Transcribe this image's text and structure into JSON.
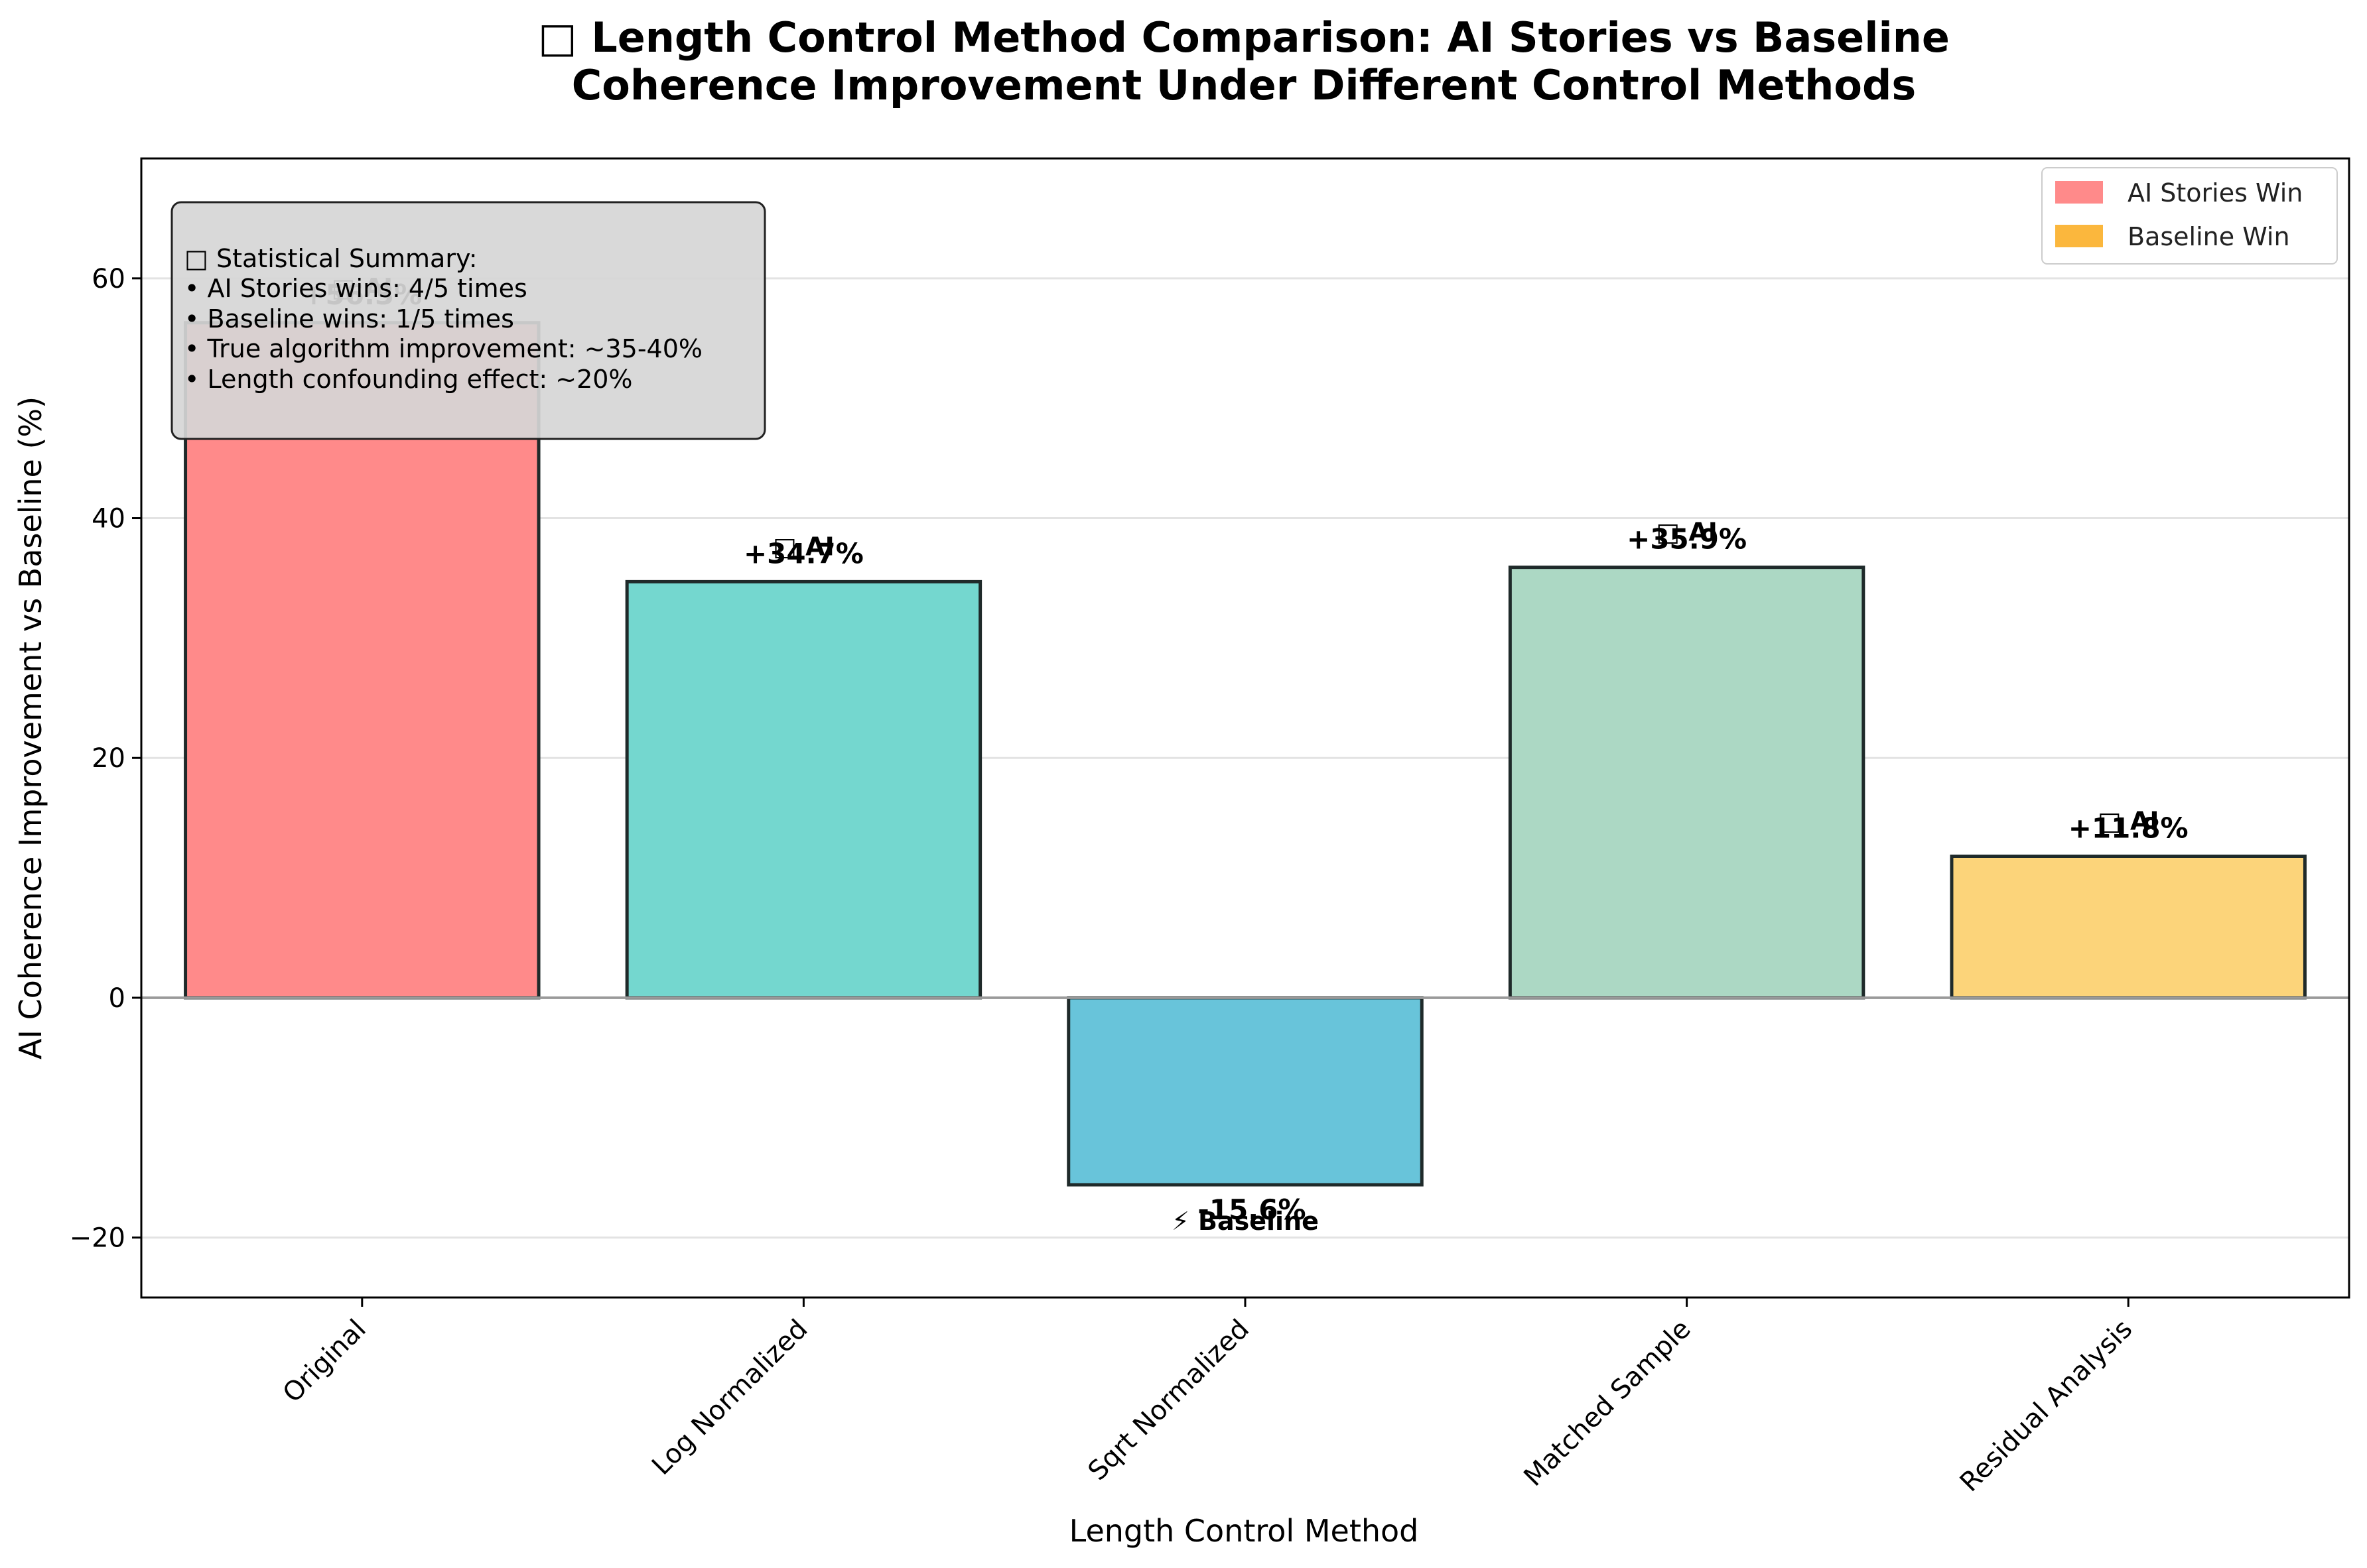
{
  "chart_data": {
    "type": "bar",
    "title": "□ Length Control Method Comparison: AI Stories vs Baseline",
    "subtitle": "Coherence Improvement Under Different Control Methods",
    "xlabel": "Length Control Method",
    "ylabel": "AI Coherence Improvement vs Baseline (%)",
    "ylim": [
      -25,
      70
    ],
    "yticks": [
      -20,
      0,
      20,
      40,
      60
    ],
    "ytick_labels": [
      "−20",
      "0",
      "20",
      "40",
      "60"
    ],
    "grid": "y",
    "categories": [
      "Original",
      "Log Normalized",
      "Sqrt Normalized",
      "Matched Sample",
      "Residual Analysis"
    ],
    "values": [
      56.3,
      34.7,
      -15.6,
      35.9,
      11.8
    ],
    "value_labels": [
      "+56.3%",
      "+34.7%",
      "-15.6%",
      "+35.9%",
      "+11.8%"
    ],
    "winner_tags": [
      "□ AI",
      "□ AI",
      "⚡ Baseline",
      "□ AI",
      "□ AI"
    ],
    "bar_colors": [
      "#ff8a8a",
      "#74d7cf",
      "#68c4da",
      "#acd8c4",
      "#fcd47a"
    ],
    "legend": {
      "placement": "top-right",
      "entries": [
        {
          "label": "AI Stories Win",
          "color": "#ff8a8a"
        },
        {
          "label": "Baseline Win",
          "color": "#fbb73d"
        }
      ]
    },
    "stats_box": {
      "lines": [
        "□ Statistical Summary:",
        "• AI Stories wins: 4/5 times",
        "• Baseline wins: 1/5 times",
        "• True algorithm improvement: ~35-40%",
        "• Length confounding effect: ~20%"
      ]
    }
  }
}
